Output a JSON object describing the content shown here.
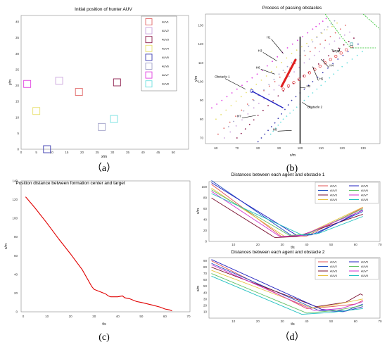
{
  "captions": {
    "a": "（a）",
    "b": "(b)",
    "c": "(c)",
    "d": "（d）"
  },
  "panel_a": {
    "title": "Initial position of hunter AUV",
    "xlabel": "x/m",
    "ylabel": "y/m",
    "xticks": [
      "0",
      "5",
      "10",
      "15",
      "20",
      "25",
      "30",
      "35",
      "40",
      "45",
      "50"
    ],
    "yticks": [
      "0",
      "5",
      "10",
      "15",
      "20",
      "25",
      "30",
      "35",
      "40"
    ],
    "legend": [
      "AUV1",
      "AUV2",
      "AUV3",
      "AUV4",
      "AUV5",
      "AUV6",
      "AUV7",
      "AUV8"
    ]
  },
  "panel_b": {
    "title": "Process of passing obstacles",
    "xlabel": "x/m",
    "ylabel": "y/m",
    "xticks": [
      "60",
      "70",
      "80",
      "90",
      "100",
      "110",
      "120",
      "130"
    ],
    "yticks": [
      "70",
      "80",
      "90",
      "100",
      "110",
      "120",
      "130"
    ],
    "annotations": {
      "h1": "H1",
      "h2": "H2",
      "h3": "H3",
      "h4": "H4",
      "h5": "H5",
      "h6": "H6",
      "h7": "H7",
      "h8": "H8",
      "target": "Target",
      "obstacle1": "Obstacle 1",
      "obstacle2": "Obstacle 2"
    }
  },
  "panel_c": {
    "title": "Position distance between formation center and target",
    "xlabel": "t/s",
    "ylabel": "x/m",
    "xticks": [
      "0",
      "10",
      "20",
      "30",
      "40",
      "50",
      "60",
      "70"
    ],
    "yticks": [
      "0",
      "20",
      "40",
      "60",
      "80",
      "100",
      "120",
      "140"
    ]
  },
  "panel_d1": {
    "title": "Distances between each agent and obstacle 1",
    "xlabel": "t/s",
    "ylabel": "x/m",
    "xticks": [
      "10",
      "20",
      "30",
      "40",
      "50",
      "60",
      "70"
    ],
    "yticks": [
      "0",
      "20",
      "40",
      "60",
      "80",
      "100"
    ],
    "legend": [
      "AUV1",
      "AUV5",
      "AUV2",
      "AUV6",
      "AUV3",
      "AUV7",
      "AUV4",
      "AUV8"
    ]
  },
  "panel_d2": {
    "title": "Distances between each agent and obstacle 2",
    "xlabel": "t/s",
    "ylabel": "x/m",
    "xticks": [
      "10",
      "20",
      "30",
      "40",
      "50",
      "60",
      "70"
    ],
    "yticks": [
      "10",
      "20",
      "30",
      "40",
      "50",
      "60",
      "70",
      "80",
      "90"
    ],
    "legend": [
      "AUV1",
      "AUV5",
      "AUV2",
      "AUV6",
      "AUV3",
      "AUV7",
      "AUV4",
      "AUV8"
    ]
  },
  "colors": {
    "AUV1": "#e06666",
    "AUV2": "#c9a0dc",
    "AUV3": "#8b1a4a",
    "AUV4": "#e8e070",
    "AUV5": "#3b3bb0",
    "AUV6": "#a0a0c8",
    "AUV7": "#e040e0",
    "AUV8": "#70e0e0",
    "d_AUV1": "#e05555",
    "d_AUV2": "#2050c0",
    "d_AUV3": "#7a1030",
    "d_AUV4": "#e8c040",
    "d_AUV5": "#2020c0",
    "d_AUV6": "#60c060",
    "d_AUV7": "#d030d0",
    "d_AUV8": "#20c0c0",
    "c_line": "#e00000"
  },
  "chart_data": [
    {
      "type": "scatter",
      "title": "Initial position of hunter AUV",
      "xlabel": "x/m",
      "ylabel": "y/m",
      "xlim": [
        0,
        55
      ],
      "ylim": [
        0,
        42
      ],
      "series": [
        {
          "name": "AUV1",
          "x": [
            19
          ],
          "y": [
            18
          ]
        },
        {
          "name": "AUV2",
          "x": [
            12.5
          ],
          "y": [
            21.5
          ]
        },
        {
          "name": "AUV3",
          "x": [
            31.5
          ],
          "y": [
            21
          ]
        },
        {
          "name": "AUV4",
          "x": [
            5
          ],
          "y": [
            12
          ]
        },
        {
          "name": "AUV5",
          "x": [
            8.5
          ],
          "y": [
            0
          ]
        },
        {
          "name": "AUV6",
          "x": [
            26.5
          ],
          "y": [
            7
          ]
        },
        {
          "name": "AUV7",
          "x": [
            2
          ],
          "y": [
            20.5
          ]
        },
        {
          "name": "AUV8",
          "x": [
            30.5
          ],
          "y": [
            9.5
          ]
        }
      ],
      "legend": "top-right"
    },
    {
      "type": "scatter",
      "title": "Process of passing obstacles",
      "xlabel": "x/m",
      "ylabel": "y/m",
      "xlim": [
        55,
        138
      ],
      "ylim": [
        67,
        136
      ]
    },
    {
      "type": "line",
      "title": "Position distance between formation center and target",
      "xlabel": "t/s",
      "ylabel": "x/m",
      "xlim": [
        0,
        70
      ],
      "ylim": [
        0,
        140
      ],
      "series": [
        {
          "x": [
            1,
            5,
            10,
            15,
            20,
            25,
            29,
            30,
            32,
            34,
            35,
            36,
            37,
            40,
            42,
            43,
            45,
            48,
            50,
            55,
            58,
            60,
            62,
            63
          ],
          "y": [
            123,
            111,
            95,
            78,
            62,
            45,
            27,
            24,
            22,
            20,
            19,
            17,
            16,
            16,
            17,
            15,
            14,
            11,
            10,
            7,
            5,
            3,
            2,
            1
          ]
        }
      ]
    },
    {
      "type": "line",
      "title": "Distances between each agent and obstacle 1",
      "xlabel": "t/s",
      "ylabel": "x/m",
      "xlim": [
        0,
        70
      ],
      "ylim": [
        0,
        110
      ],
      "series": [
        {
          "name": "AUV1",
          "x": [
            1,
            30,
            40,
            63
          ],
          "y": [
            105,
            8,
            10,
            62
          ]
        },
        {
          "name": "AUV2",
          "x": [
            1,
            34,
            42,
            63
          ],
          "y": [
            112,
            10,
            12,
            55
          ]
        },
        {
          "name": "AUV3",
          "x": [
            1,
            27,
            36,
            63
          ],
          "y": [
            80,
            7,
            9,
            50
          ]
        },
        {
          "name": "AUV4",
          "x": [
            1,
            31,
            39,
            63
          ],
          "y": [
            98,
            9,
            12,
            63
          ]
        },
        {
          "name": "AUV5",
          "x": [
            1,
            36,
            44,
            63
          ],
          "y": [
            108,
            11,
            14,
            58
          ]
        },
        {
          "name": "AUV6",
          "x": [
            1,
            33,
            40,
            63
          ],
          "y": [
            95,
            11,
            13,
            60
          ]
        },
        {
          "name": "AUV7",
          "x": [
            1,
            29,
            38,
            63
          ],
          "y": [
            92,
            9,
            11,
            57
          ]
        },
        {
          "name": "AUV8",
          "x": [
            1,
            38,
            45,
            63
          ],
          "y": [
            88,
            12,
            15,
            46
          ]
        }
      ],
      "legend": "top-right"
    },
    {
      "type": "line",
      "title": "Distances between each agent and obstacle 2",
      "xlabel": "t/s",
      "ylabel": "x/m",
      "xlim": [
        0,
        70
      ],
      "ylim": [
        0,
        95
      ],
      "series": [
        {
          "name": "AUV1",
          "x": [
            1,
            40,
            50,
            60,
            63
          ],
          "y": [
            90,
            15,
            18,
            22,
            28
          ]
        },
        {
          "name": "AUV2",
          "x": [
            1,
            45,
            55,
            63
          ],
          "y": [
            86,
            12,
            10,
            22
          ]
        },
        {
          "name": "AUV3",
          "x": [
            1,
            44,
            56,
            62,
            63
          ],
          "y": [
            80,
            18,
            25,
            38,
            36
          ]
        },
        {
          "name": "AUV4",
          "x": [
            1,
            42,
            50,
            63
          ],
          "y": [
            75,
            16,
            20,
            30
          ]
        },
        {
          "name": "AUV5",
          "x": [
            1,
            46,
            56,
            63
          ],
          "y": [
            92,
            14,
            11,
            18
          ]
        },
        {
          "name": "AUV6",
          "x": [
            1,
            40,
            52,
            63
          ],
          "y": [
            70,
            8,
            12,
            20
          ]
        },
        {
          "name": "AUV7",
          "x": [
            1,
            43,
            54,
            63
          ],
          "y": [
            84,
            12,
            15,
            26
          ]
        },
        {
          "name": "AUV8",
          "x": [
            1,
            38,
            50,
            63
          ],
          "y": [
            66,
            6,
            9,
            15
          ]
        }
      ],
      "legend": "top-right"
    }
  ]
}
